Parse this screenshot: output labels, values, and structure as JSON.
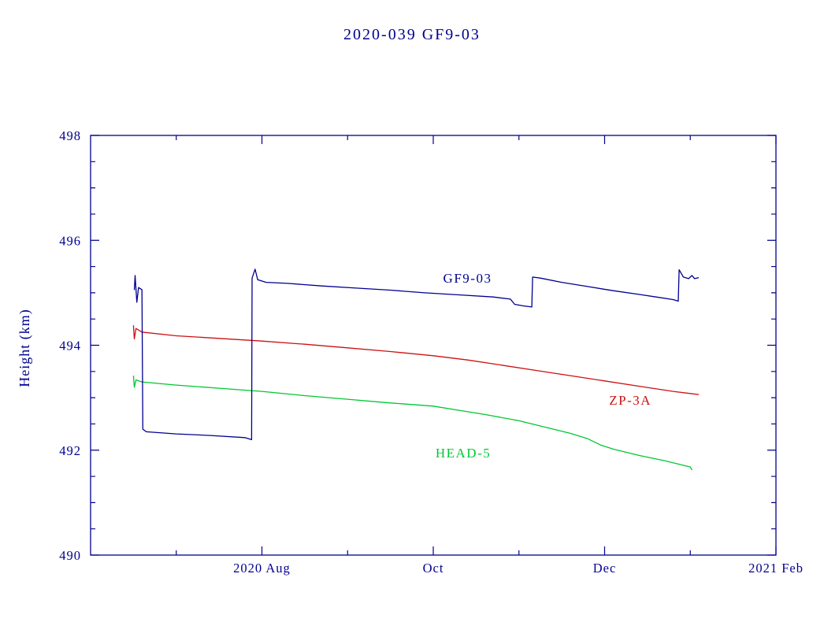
{
  "colors": {
    "axis": "#000090",
    "gf9_03": "#000090",
    "zp_3a": "#cc1111",
    "head_5": "#00c832",
    "background": "#ffffff"
  },
  "chart_data": {
    "type": "line",
    "title": "2020-039 GF9-03",
    "xlabel": "",
    "ylabel": "Height (km)",
    "ylim": [
      490,
      498
    ],
    "xlim_months": [
      6,
      14
    ],
    "x_axis_note": "x in month units: 6 = 2020 Jun 1, 8 = 2020 Aug 1, 14 = 2021 Feb 1",
    "grid": false,
    "legend": "inline-labels",
    "x_ticks_major": [
      {
        "m": 8,
        "label": "2020 Aug"
      },
      {
        "m": 10,
        "label": "Oct"
      },
      {
        "m": 12,
        "label": "Dec"
      },
      {
        "m": 14,
        "label": "2021 Feb"
      }
    ],
    "x_ticks_minor": [
      7,
      9,
      11,
      13
    ],
    "y_ticks_major": [
      490,
      492,
      494,
      496,
      498
    ],
    "y_tick_minor_step": 0.5,
    "series": [
      {
        "name": "HEAD-5",
        "label": "HEAD-5",
        "color": "#00c832",
        "label_at": [
          10.35,
          491.95
        ],
        "points": [
          [
            6.5,
            493.42
          ],
          [
            6.51,
            493.2
          ],
          [
            6.53,
            493.34
          ],
          [
            6.6,
            493.3
          ],
          [
            7.0,
            493.24
          ],
          [
            7.5,
            493.18
          ],
          [
            8.0,
            493.12
          ],
          [
            8.5,
            493.04
          ],
          [
            9.0,
            492.97
          ],
          [
            9.5,
            492.9
          ],
          [
            10.0,
            492.84
          ],
          [
            10.3,
            492.76
          ],
          [
            10.6,
            492.68
          ],
          [
            11.0,
            492.56
          ],
          [
            11.3,
            492.44
          ],
          [
            11.6,
            492.32
          ],
          [
            11.8,
            492.22
          ],
          [
            11.95,
            492.1
          ],
          [
            12.1,
            492.02
          ],
          [
            12.4,
            491.9
          ],
          [
            12.7,
            491.8
          ],
          [
            13.0,
            491.68
          ],
          [
            13.02,
            491.62
          ]
        ]
      },
      {
        "name": "ZP-3A",
        "label": "ZP-3A",
        "color": "#cc1111",
        "label_at": [
          12.3,
          492.96
        ],
        "points": [
          [
            6.5,
            494.38
          ],
          [
            6.51,
            494.12
          ],
          [
            6.53,
            494.32
          ],
          [
            6.6,
            494.25
          ],
          [
            7.0,
            494.18
          ],
          [
            7.5,
            494.13
          ],
          [
            8.0,
            494.08
          ],
          [
            8.5,
            494.02
          ],
          [
            9.0,
            493.95
          ],
          [
            9.5,
            493.88
          ],
          [
            10.0,
            493.8
          ],
          [
            10.4,
            493.72
          ],
          [
            10.8,
            493.62
          ],
          [
            11.2,
            493.52
          ],
          [
            11.6,
            493.42
          ],
          [
            12.0,
            493.32
          ],
          [
            12.4,
            493.22
          ],
          [
            12.8,
            493.12
          ],
          [
            13.0,
            493.08
          ],
          [
            13.1,
            493.06
          ]
        ]
      },
      {
        "name": "GF9-03",
        "label": "GF9-03",
        "color": "#000090",
        "label_at": [
          10.4,
          495.28
        ],
        "points": [
          [
            6.51,
            495.05
          ],
          [
            6.52,
            495.33
          ],
          [
            6.54,
            494.82
          ],
          [
            6.56,
            495.1
          ],
          [
            6.6,
            495.06
          ],
          [
            6.61,
            492.4
          ],
          [
            6.65,
            492.35
          ],
          [
            7.0,
            492.31
          ],
          [
            7.4,
            492.28
          ],
          [
            7.8,
            492.24
          ],
          [
            7.88,
            492.2
          ],
          [
            7.885,
            495.28
          ],
          [
            7.92,
            495.45
          ],
          [
            7.95,
            495.25
          ],
          [
            8.05,
            495.2
          ],
          [
            8.3,
            495.18
          ],
          [
            8.7,
            495.13
          ],
          [
            9.1,
            495.09
          ],
          [
            9.5,
            495.05
          ],
          [
            9.9,
            495.0
          ],
          [
            10.3,
            494.96
          ],
          [
            10.7,
            494.92
          ],
          [
            10.9,
            494.88
          ],
          [
            10.95,
            494.78
          ],
          [
            11.05,
            494.75
          ],
          [
            11.15,
            494.73
          ],
          [
            11.16,
            495.3
          ],
          [
            11.25,
            495.28
          ],
          [
            11.5,
            495.2
          ],
          [
            11.8,
            495.12
          ],
          [
            12.1,
            495.04
          ],
          [
            12.4,
            494.97
          ],
          [
            12.6,
            494.92
          ],
          [
            12.8,
            494.87
          ],
          [
            12.86,
            494.84
          ],
          [
            12.87,
            495.44
          ],
          [
            12.92,
            495.3
          ],
          [
            12.98,
            495.27
          ],
          [
            13.02,
            495.33
          ],
          [
            13.05,
            495.27
          ],
          [
            13.1,
            495.29
          ]
        ]
      }
    ]
  }
}
